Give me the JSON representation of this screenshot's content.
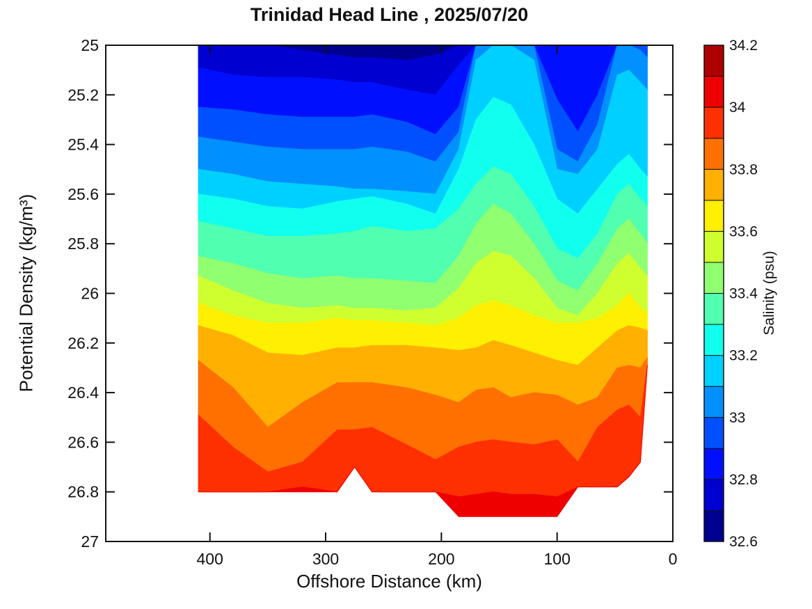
{
  "chart_data": {
    "type": "filled-contour-section",
    "title": "Trinidad Head Line , 2025/07/20",
    "xlabel": "Offshore Distance (km)",
    "ylabel": "Potential Density (kg/m³)",
    "x_axis": {
      "min_km": 0,
      "max_km": 490,
      "reversed": true,
      "tick_values": [
        400,
        300,
        200,
        100,
        0
      ],
      "tick_labels": [
        "400",
        "300",
        "200",
        "100",
        "0"
      ]
    },
    "y_axis": {
      "min": 25,
      "max": 27,
      "increases_downward": true,
      "tick_values": [
        25,
        25.2,
        25.4,
        25.6,
        25.8,
        26,
        26.2,
        26.4,
        26.6,
        26.8,
        27
      ],
      "tick_labels": [
        "25",
        "25.2",
        "25.4",
        "25.6",
        "25.8",
        "26",
        "26.2",
        "26.4",
        "26.6",
        "26.8",
        "27"
      ]
    },
    "colorbar": {
      "label": "Salinity (psu)",
      "min": 32.6,
      "max": 34.2,
      "segment_step": 0.1,
      "tick_values": [
        32.6,
        32.8,
        33,
        33.2,
        33.4,
        33.6,
        33.8,
        34,
        34.2
      ],
      "tick_labels": [
        "32.6",
        "32.8",
        "33",
        "33.2",
        "33.4",
        "33.6",
        "33.8",
        "34",
        "34.2"
      ],
      "palette_jet16": [
        "#000090",
        "#0000D0",
        "#0010FF",
        "#0050FF",
        "#0090FF",
        "#00D0FF",
        "#10FFEF",
        "#50FFB0",
        "#90FF70",
        "#D0FF30",
        "#FFEF00",
        "#FFB000",
        "#FF7000",
        "#FF3000",
        "#EF0000",
        "#AF0000"
      ]
    },
    "section": {
      "comment": "iso_density[i][j] = potential density (kg/m3) of iso-salinity line iso_levels_psu[i] at stations_km[j]; 24.9 = outcrops above 25.0 surface, 27.2 = below seafloor/data; fill clamped to [25.0, bottom_density].",
      "stations_km": [
        410,
        380,
        350,
        320,
        290,
        275,
        260,
        230,
        205,
        185,
        170,
        155,
        140,
        120,
        100,
        82,
        65,
        48,
        38,
        28,
        22
      ],
      "bottom_density": [
        26.8,
        26.8,
        26.8,
        26.8,
        26.8,
        26.7,
        26.8,
        26.8,
        26.8,
        26.9,
        26.9,
        26.9,
        26.9,
        26.9,
        26.9,
        26.78,
        26.78,
        26.78,
        26.74,
        26.68,
        26.29
      ],
      "iso_levels_psu": [
        32.7,
        32.8,
        32.9,
        33.0,
        33.1,
        33.2,
        33.3,
        33.4,
        33.5,
        33.6,
        33.7,
        33.8,
        33.9,
        34.0,
        34.1
      ],
      "iso_density": [
        [
          24.9,
          24.9,
          24.9,
          25.02,
          25.04,
          25.05,
          25.05,
          25.06,
          25.04,
          24.9,
          24.9,
          24.9,
          24.9,
          24.9,
          24.9,
          24.9,
          24.9,
          24.9,
          24.9,
          24.9,
          24.9
        ],
        [
          25.09,
          25.12,
          25.13,
          25.13,
          25.14,
          25.15,
          25.15,
          25.18,
          25.2,
          25.08,
          24.9,
          24.9,
          24.9,
          24.9,
          24.9,
          24.9,
          24.9,
          24.9,
          24.9,
          24.9,
          24.9
        ],
        [
          25.25,
          25.26,
          25.28,
          25.29,
          25.29,
          25.29,
          25.28,
          25.31,
          25.36,
          25.25,
          24.9,
          24.9,
          24.9,
          24.9,
          25.22,
          25.35,
          25.2,
          24.9,
          24.9,
          24.9,
          24.9
        ],
        [
          25.37,
          25.39,
          25.41,
          25.42,
          25.42,
          25.42,
          25.41,
          25.43,
          25.47,
          25.35,
          24.9,
          24.9,
          24.9,
          24.9,
          25.42,
          25.47,
          25.32,
          24.9,
          24.9,
          25.02,
          25.05
        ],
        [
          25.5,
          25.52,
          25.55,
          25.56,
          25.57,
          25.58,
          25.58,
          25.59,
          25.6,
          25.42,
          25.06,
          24.9,
          24.9,
          25.06,
          25.5,
          25.52,
          25.42,
          25.12,
          25.1,
          25.15,
          25.18
        ],
        [
          25.6,
          25.62,
          25.65,
          25.66,
          25.63,
          25.62,
          25.61,
          25.64,
          25.68,
          25.5,
          25.3,
          25.21,
          25.24,
          25.4,
          25.62,
          25.68,
          25.58,
          25.48,
          25.44,
          25.5,
          25.53
        ],
        [
          25.71,
          25.74,
          25.77,
          25.77,
          25.76,
          25.75,
          25.73,
          25.75,
          25.74,
          25.66,
          25.56,
          25.49,
          25.52,
          25.65,
          25.82,
          25.86,
          25.76,
          25.6,
          25.56,
          25.62,
          25.65
        ],
        [
          25.85,
          25.88,
          25.92,
          25.94,
          25.93,
          25.94,
          25.94,
          25.95,
          25.96,
          25.85,
          25.72,
          25.64,
          25.68,
          25.8,
          25.95,
          25.99,
          25.88,
          25.74,
          25.7,
          25.76,
          25.8
        ],
        [
          25.93,
          25.99,
          26.04,
          26.06,
          26.05,
          26.06,
          26.06,
          26.07,
          26.06,
          25.98,
          25.88,
          25.83,
          25.85,
          25.94,
          26.06,
          26.09,
          26.0,
          25.88,
          25.84,
          25.9,
          25.93
        ],
        [
          26.04,
          26.09,
          26.12,
          26.12,
          26.1,
          26.11,
          26.11,
          26.12,
          26.13,
          26.1,
          26.05,
          26.03,
          26.05,
          26.09,
          26.12,
          26.12,
          26.1,
          26.05,
          26.0,
          26.06,
          26.08
        ],
        [
          26.13,
          26.17,
          26.24,
          26.25,
          26.22,
          26.22,
          26.21,
          26.21,
          26.22,
          26.23,
          26.22,
          26.19,
          26.21,
          26.24,
          26.27,
          26.29,
          26.22,
          26.15,
          26.13,
          26.14,
          26.15
        ],
        [
          26.27,
          26.38,
          26.54,
          26.44,
          26.36,
          26.36,
          26.36,
          26.38,
          26.41,
          26.44,
          26.39,
          26.38,
          26.42,
          26.4,
          26.41,
          26.45,
          26.42,
          26.3,
          26.29,
          26.3,
          26.26
        ],
        [
          26.49,
          26.62,
          26.72,
          26.68,
          26.55,
          26.55,
          26.54,
          26.61,
          26.67,
          26.62,
          26.6,
          26.59,
          26.6,
          26.61,
          26.59,
          26.68,
          26.54,
          26.47,
          26.45,
          26.5,
          26.58
        ],
        [
          27.2,
          27.2,
          26.9,
          26.78,
          26.9,
          27.2,
          27.2,
          27.2,
          26.95,
          26.82,
          26.81,
          26.8,
          26.81,
          26.81,
          26.82,
          26.95,
          27.2,
          27.2,
          27.2,
          27.2,
          27.2
        ],
        [
          27.2,
          27.2,
          27.2,
          27.2,
          27.2,
          27.2,
          27.2,
          27.2,
          27.2,
          27.2,
          27.2,
          27.2,
          27.2,
          27.2,
          27.2,
          27.2,
          27.2,
          27.2,
          27.2,
          27.2,
          27.2
        ]
      ]
    }
  }
}
